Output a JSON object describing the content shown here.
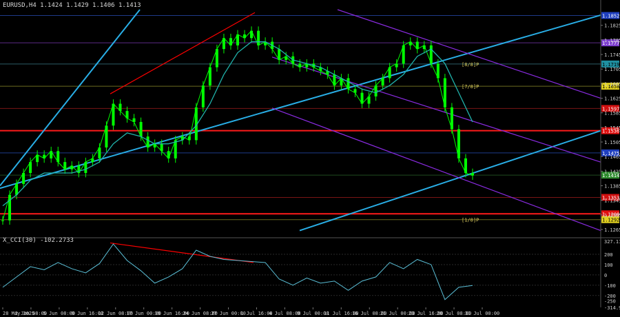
{
  "header": {
    "symbol_line": "EURUSD,H4  1.1424 1.1429 1.1406 1.1413"
  },
  "indicator": {
    "title": "X_CCI(30) -102.2733"
  },
  "colors": {
    "background": "#000000",
    "candle": "#00ff00",
    "ma": "#20b2aa",
    "channel": "#29aee6",
    "regression": "#8a2be2",
    "red_line": "#ff0000",
    "resistance_red": "#d01010",
    "cci_line": "#5bc0d8",
    "axis_text": "#cfcfcf",
    "grid_dim": "#1b1b1b"
  },
  "chart_data": [
    {
      "type": "line",
      "title": "EURUSD,H4",
      "x_tick_labels": [
        "28 May 2025",
        "2 Jun 08:00",
        "5 Jun 08:00",
        "9 Jun 16:00",
        "12 Jun 08:00",
        "17 Jun 00:00",
        "19 Jun 16:00",
        "24 Jun 08:00",
        "27 Jun 00:00",
        "1 Jul 16:00",
        "4 Jul 08:00",
        "9 Jul 00:00",
        "11 Jul 16:00",
        "16 Jul 08:00",
        "21 Jul 00:00",
        "23 Jul 16:00",
        "28 Jul 08:00",
        "31 Jul 00:00"
      ],
      "y_tick_labels": [
        "1.1825",
        "1.1785",
        "1.1745",
        "1.1705",
        "1.1665",
        "1.1625",
        "1.1585",
        "1.1545",
        "1.1505",
        "1.1465",
        "1.1425",
        "1.1385",
        "1.1345",
        "1.1305",
        "1.1265"
      ],
      "ylim": [
        1.1248,
        1.1868
      ],
      "series": [
        {
          "name": "EURUSD,H4",
          "x": [
            0,
            10,
            20,
            30,
            40,
            50,
            60,
            70,
            80,
            90,
            100,
            110,
            120,
            130,
            140,
            150,
            160,
            170,
            180,
            190,
            200,
            210,
            220,
            230,
            240,
            250,
            260,
            270,
            280,
            290,
            300,
            310,
            320,
            330,
            340,
            350,
            360,
            370,
            380,
            390,
            400,
            410,
            420,
            430,
            440,
            450,
            460,
            470,
            480,
            490,
            500,
            510,
            520,
            530,
            540,
            550,
            560,
            570,
            580,
            590,
            600,
            610,
            620,
            630,
            640,
            650,
            660,
            670,
            680
          ],
          "values": [
            1.129,
            1.136,
            1.139,
            1.142,
            1.145,
            1.147,
            1.146,
            1.148,
            1.145,
            1.143,
            1.144,
            1.142,
            1.145,
            1.146,
            1.149,
            1.155,
            1.161,
            1.159,
            1.157,
            1.156,
            1.152,
            1.149,
            1.15,
            1.148,
            1.146,
            1.151,
            1.152,
            1.151,
            1.16,
            1.166,
            1.171,
            1.176,
            1.179,
            1.177,
            1.18,
            1.179,
            1.181,
            1.177,
            1.178,
            1.176,
            1.173,
            1.174,
            1.172,
            1.171,
            1.172,
            1.171,
            1.17,
            1.169,
            1.166,
            1.168,
            1.165,
            1.164,
            1.161,
            1.163,
            1.166,
            1.168,
            1.171,
            1.172,
            1.177,
            1.178,
            1.176,
            1.177,
            1.172,
            1.168,
            1.16,
            1.154,
            1.146,
            1.142,
            1.1413
          ]
        },
        {
          "name": "MA",
          "x": [
            0,
            20,
            40,
            60,
            80,
            100,
            120,
            140,
            160,
            180,
            200,
            220,
            240,
            260,
            280,
            300,
            320,
            340,
            360,
            380,
            400,
            420,
            440,
            460,
            480,
            500,
            520,
            540,
            560,
            580,
            600,
            620,
            640,
            660,
            680
          ],
          "values": [
            1.133,
            1.136,
            1.14,
            1.142,
            1.142,
            1.142,
            1.143,
            1.145,
            1.15,
            1.153,
            1.152,
            1.15,
            1.15,
            1.151,
            1.155,
            1.161,
            1.169,
            1.175,
            1.178,
            1.178,
            1.176,
            1.173,
            1.172,
            1.171,
            1.169,
            1.167,
            1.165,
            1.164,
            1.166,
            1.169,
            1.174,
            1.176,
            1.172,
            1.164,
            1.156
          ]
        }
      ],
      "levels": [
        {
          "label": "1.1852",
          "value": 1.1852,
          "kind": "blue"
        },
        {
          "label": "1.1777",
          "value": 1.1777,
          "kind": "violet"
        },
        {
          "label": "1.1719",
          "value": 1.1719,
          "kind": "cyan"
        },
        {
          "label": "1.1658",
          "value": 1.1658,
          "kind": "yellow"
        },
        {
          "label": "1.1597",
          "value": 1.1597,
          "kind": "red"
        },
        {
          "label": "1.1536",
          "value": 1.1536,
          "kind": "mainred"
        },
        {
          "label": "1.1475",
          "value": 1.1475,
          "kind": "blue"
        },
        {
          "label": "1.1414",
          "value": 1.1414,
          "kind": "green"
        },
        {
          "label": "1.1353",
          "value": 1.1353,
          "kind": "red"
        },
        {
          "label": "1.1308",
          "value": 1.1308,
          "kind": "mainred"
        },
        {
          "label": "1.1292",
          "value": 1.1292,
          "kind": "yellow"
        }
      ],
      "level_tags": [
        {
          "text": "[8/8]P",
          "value": 1.1719
        },
        {
          "text": "[7/8]P",
          "value": 1.1658
        },
        {
          "text": "[1/8]P",
          "value": 1.1292
        }
      ]
    },
    {
      "type": "line",
      "title": "X_CCI(30)",
      "y_tick_labels": [
        "327.116",
        "200",
        "100",
        "0",
        "-100",
        "-200",
        "-250",
        "-314.976"
      ],
      "ylim": [
        -314.976,
        327.116
      ],
      "reference_lines": [
        200,
        100,
        0,
        -100,
        -200
      ],
      "series": [
        {
          "name": "X_CCI(30)",
          "x": [
            0,
            20,
            40,
            60,
            80,
            100,
            120,
            140,
            160,
            180,
            200,
            220,
            240,
            260,
            280,
            300,
            320,
            340,
            360,
            380,
            400,
            420,
            440,
            460,
            480,
            500,
            520,
            540,
            560,
            580,
            600,
            620,
            640,
            660,
            680
          ],
          "values": [
            -120,
            -20,
            80,
            50,
            120,
            60,
            20,
            110,
            300,
            140,
            40,
            -80,
            -20,
            60,
            240,
            180,
            150,
            140,
            130,
            120,
            -40,
            -100,
            -30,
            -80,
            -60,
            -150,
            -60,
            -20,
            120,
            60,
            150,
            100,
            -240,
            -120,
            -102.27
          ]
        }
      ]
    }
  ]
}
